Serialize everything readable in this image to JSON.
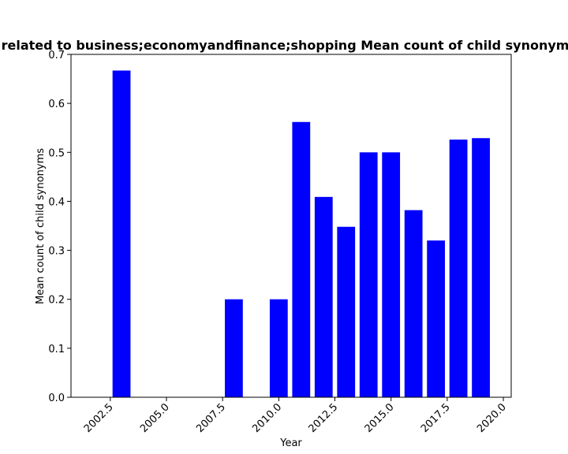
{
  "chart_data": {
    "type": "bar",
    "title": "Year-wise related to business;economyandfinance;shopping Mean count of child synonyms in Wikidata",
    "xlabel": "Year",
    "ylabel": "Mean count of child synonyms",
    "x": [
      2003,
      2008,
      2010,
      2011,
      2012,
      2013,
      2014,
      2015,
      2016,
      2017,
      2018,
      2019
    ],
    "values": [
      0.667,
      0.2,
      0.2,
      0.562,
      0.409,
      0.348,
      0.5,
      0.5,
      0.382,
      0.32,
      0.526,
      0.529
    ],
    "bar_width": 0.8,
    "xlim": [
      2000.75,
      2020.35
    ],
    "ylim": [
      0,
      0.7
    ],
    "xticks": [
      2002.5,
      2005.0,
      2007.5,
      2010.0,
      2012.5,
      2015.0,
      2017.5,
      2020.0
    ],
    "xtick_labels": [
      "2002.5",
      "2005.0",
      "2007.5",
      "2010.0",
      "2012.5",
      "2015.0",
      "2017.5",
      "2020.0"
    ],
    "yticks": [
      0.0,
      0.1,
      0.2,
      0.3,
      0.4,
      0.5,
      0.6,
      0.7
    ],
    "ytick_labels": [
      "0.0",
      "0.1",
      "0.2",
      "0.3",
      "0.4",
      "0.5",
      "0.6",
      "0.7"
    ],
    "bar_color": "#0000ff",
    "grid": false,
    "legend": "none"
  }
}
